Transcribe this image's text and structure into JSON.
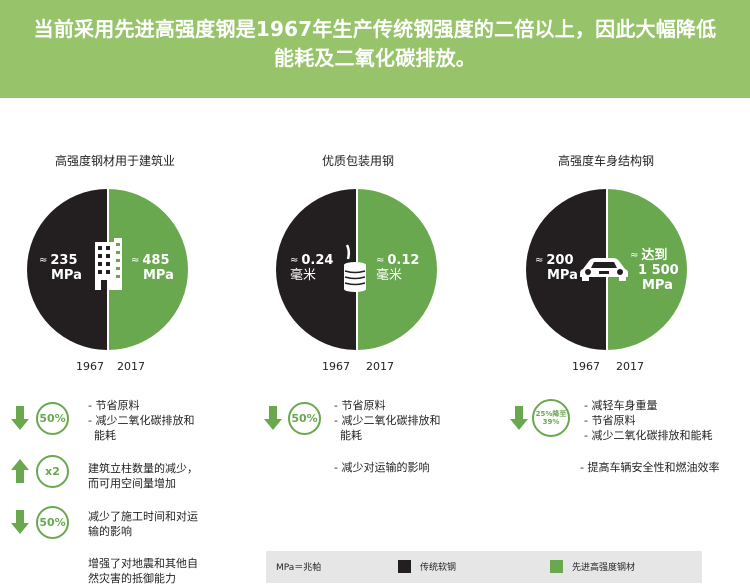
{
  "header": {
    "headline_line1": "当前采用先进高强度钢是1967年生产传统钢强度的二倍以上，因此大幅降低",
    "headline_line2": "能耗及二氧化碳排放。"
  },
  "columns": [
    {
      "title": "高强度钢材用于建筑业",
      "pie": {
        "left_value": "235",
        "left_unit": "MPa",
        "right_value": "485",
        "right_unit": "MPa",
        "icon": "building-icon"
      },
      "years": [
        "1967",
        "2017"
      ],
      "stats": [
        {
          "arrow": "down",
          "badge": "50%",
          "lines": [
            "- 节省原料",
            "- 减少二氧化碳排放和",
            "  能耗"
          ]
        },
        {
          "arrow": "up",
          "badge": "x2",
          "lines": [
            "建筑立柱数量的减少，",
            "而可用空间量增加"
          ]
        },
        {
          "arrow": "down",
          "badge": "50%",
          "lines": [
            "减少了施工时间和对运",
            "输的影响"
          ]
        }
      ],
      "extra": [
        "增强了对地震和其他自",
        "然灾害的抵御能力"
      ]
    },
    {
      "title": "优质包装用钢",
      "pie": {
        "left_value": "0.24",
        "left_unit": "毫米",
        "right_value": "0.12",
        "right_unit": "毫米",
        "icon": "can-icon"
      },
      "years": [
        "1967",
        "2017"
      ],
      "stats": [
        {
          "arrow": "down",
          "badge": "50%",
          "lines": [
            "- 节省原料",
            "- 减少二氧化碳排放和",
            "  能耗"
          ]
        }
      ],
      "extra": [
        "- 减少对运输的影响"
      ]
    },
    {
      "title": "高强度车身结构钢",
      "pie": {
        "left_value": "200",
        "left_unit": "MPa",
        "right_value": "达到",
        "right_value2": "1 500",
        "right_unit": "MPa",
        "icon": "car-icon"
      },
      "years": [
        "1967",
        "2017"
      ],
      "stats": [
        {
          "arrow": "down",
          "badge": "25%降至39%",
          "badge_line1": "25%降至",
          "badge_line2": "39%",
          "lines": [
            "- 减轻车身重量",
            "- 节省原料",
            "- 减少二氧化碳排放和能耗"
          ]
        }
      ],
      "extra": [
        "- 提高车辆安全性和燃油效率"
      ]
    }
  ],
  "approx_symbol": "≈",
  "legend": {
    "unit_note": "MPa＝兆帕",
    "traditional": "传统软钢",
    "advanced": "先进高强度钢材",
    "colors": {
      "traditional": "#231f20",
      "advanced": "#6aa84f"
    }
  }
}
